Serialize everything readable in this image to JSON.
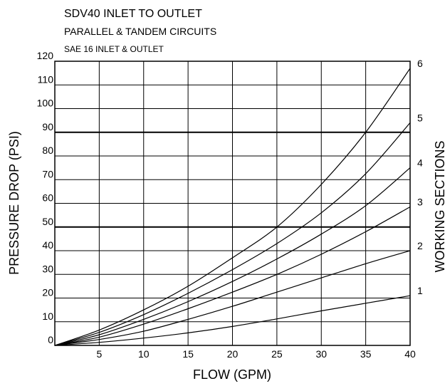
{
  "chart_data": {
    "type": "line",
    "title_lines": [
      "SDV40 INLET TO OUTLET",
      "PARALLEL & TANDEM CIRCUITS",
      "SAE 16 INLET & OUTLET"
    ],
    "xlabel": "FLOW (GPM)",
    "ylabel": "PRESSURE DROP (PSI)",
    "right_label": "WORKING SECTIONS",
    "xlim": [
      0,
      40
    ],
    "ylim": [
      0,
      120
    ],
    "x_ticks": [
      5,
      10,
      15,
      20,
      25,
      30,
      35,
      40
    ],
    "y_ticks": [
      0,
      10,
      20,
      30,
      40,
      50,
      60,
      70,
      80,
      90,
      100,
      110,
      120
    ],
    "grid": true,
    "emphasized_gridlines_y": [
      50,
      90
    ],
    "series": [
      {
        "name": "1",
        "x": [
          0,
          5,
          10,
          15,
          20,
          25,
          30,
          35,
          40
        ],
        "y": [
          0,
          1.3,
          3.1,
          5.3,
          8,
          11.2,
          14.6,
          17.8,
          21
        ]
      },
      {
        "name": "2",
        "x": [
          0,
          5,
          10,
          15,
          20,
          25,
          30,
          35,
          40
        ],
        "y": [
          0,
          2.5,
          6,
          11,
          16.5,
          22.5,
          28.5,
          34.5,
          40
        ]
      },
      {
        "name": "3",
        "x": [
          0,
          5,
          10,
          15,
          20,
          25,
          30,
          35,
          40
        ],
        "y": [
          0,
          3.5,
          9,
          15.5,
          22.5,
          30,
          38.5,
          48,
          58.5
        ]
      },
      {
        "name": "4",
        "x": [
          0,
          5,
          10,
          15,
          20,
          25,
          30,
          35,
          40
        ],
        "y": [
          0,
          4.5,
          11,
          18.5,
          27,
          36.5,
          47,
          59,
          75
        ]
      },
      {
        "name": "5",
        "x": [
          0,
          5,
          10,
          15,
          20,
          25,
          30,
          35,
          40
        ],
        "y": [
          0,
          5.5,
          13,
          22,
          32,
          43,
          56,
          72.5,
          94
        ]
      },
      {
        "name": "6",
        "x": [
          0,
          5,
          10,
          15,
          20,
          25,
          30,
          35,
          40
        ],
        "y": [
          0,
          6.5,
          15,
          25,
          37,
          50,
          68,
          90,
          117
        ]
      }
    ]
  }
}
